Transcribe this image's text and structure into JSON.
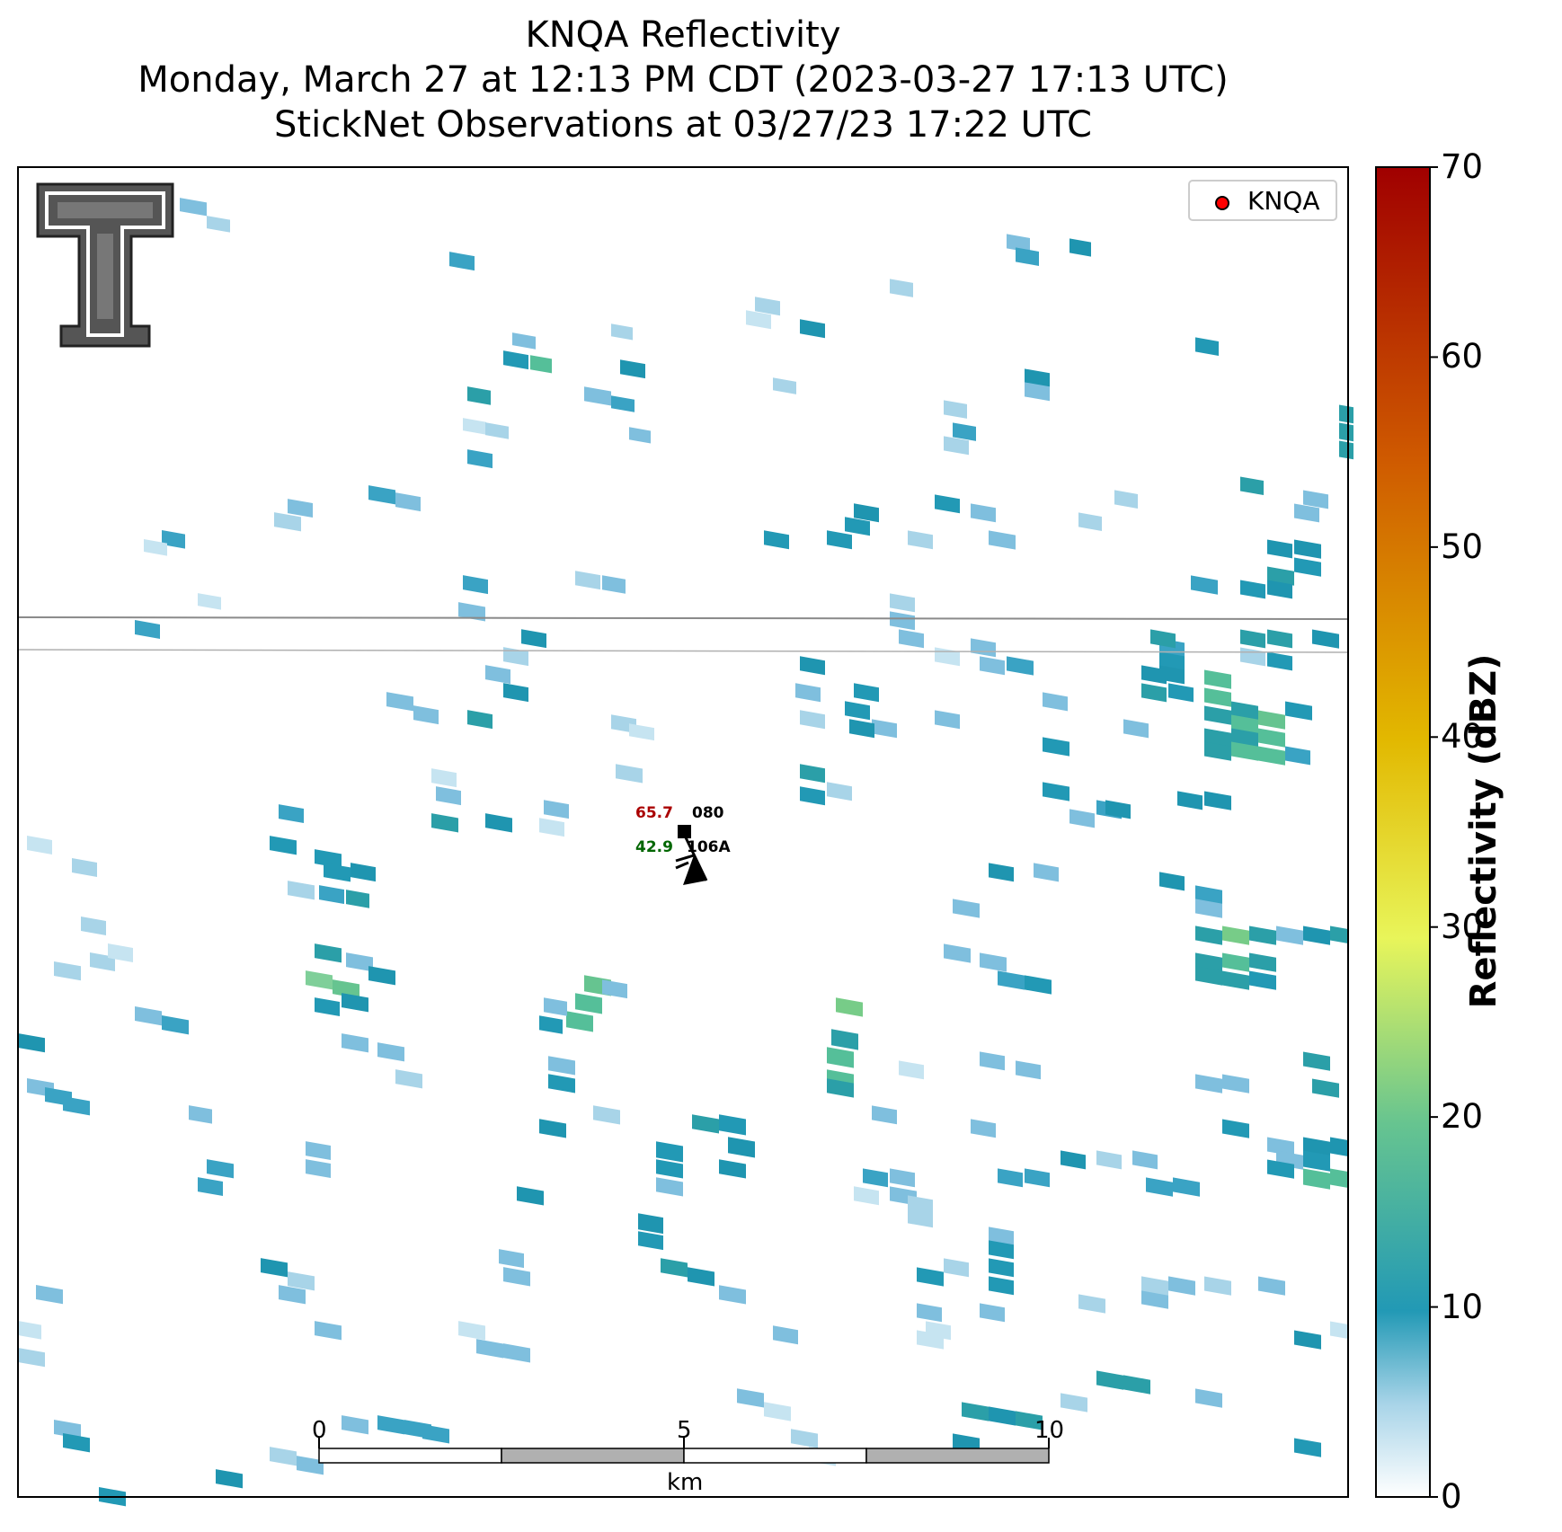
{
  "header": {
    "line1": "KNQA Reflectivity",
    "line2": "Monday, March 27 at 12:13 PM CDT (2023-03-27 17:13 UTC)",
    "line3": "StickNet Observations at 03/27/23 17:22 UTC"
  },
  "legend": {
    "label": "KNQA",
    "marker_color": "#ff0000"
  },
  "station": {
    "temperature": "65.7",
    "dewpoint": "42.9",
    "pressure_code": "080",
    "station_id": "106A",
    "temperature_color": "#aa0000",
    "dewpoint_color": "#006600"
  },
  "scalebar": {
    "ticks": [
      "0",
      "5",
      "10"
    ],
    "unit": "km"
  },
  "colorbar": {
    "label": "Reflectivity (dBZ)",
    "ticks": [
      "0",
      "10",
      "20",
      "30",
      "40",
      "50",
      "60",
      "70"
    ],
    "range": [
      0,
      70
    ],
    "colors": [
      "#ffffff",
      "#a8d4e8",
      "#2299b5",
      "#66c490",
      "#e8f55a",
      "#e2b800",
      "#cf5a00",
      "#a00000"
    ]
  },
  "logo": {
    "name": "Texas Tech Double T"
  }
}
